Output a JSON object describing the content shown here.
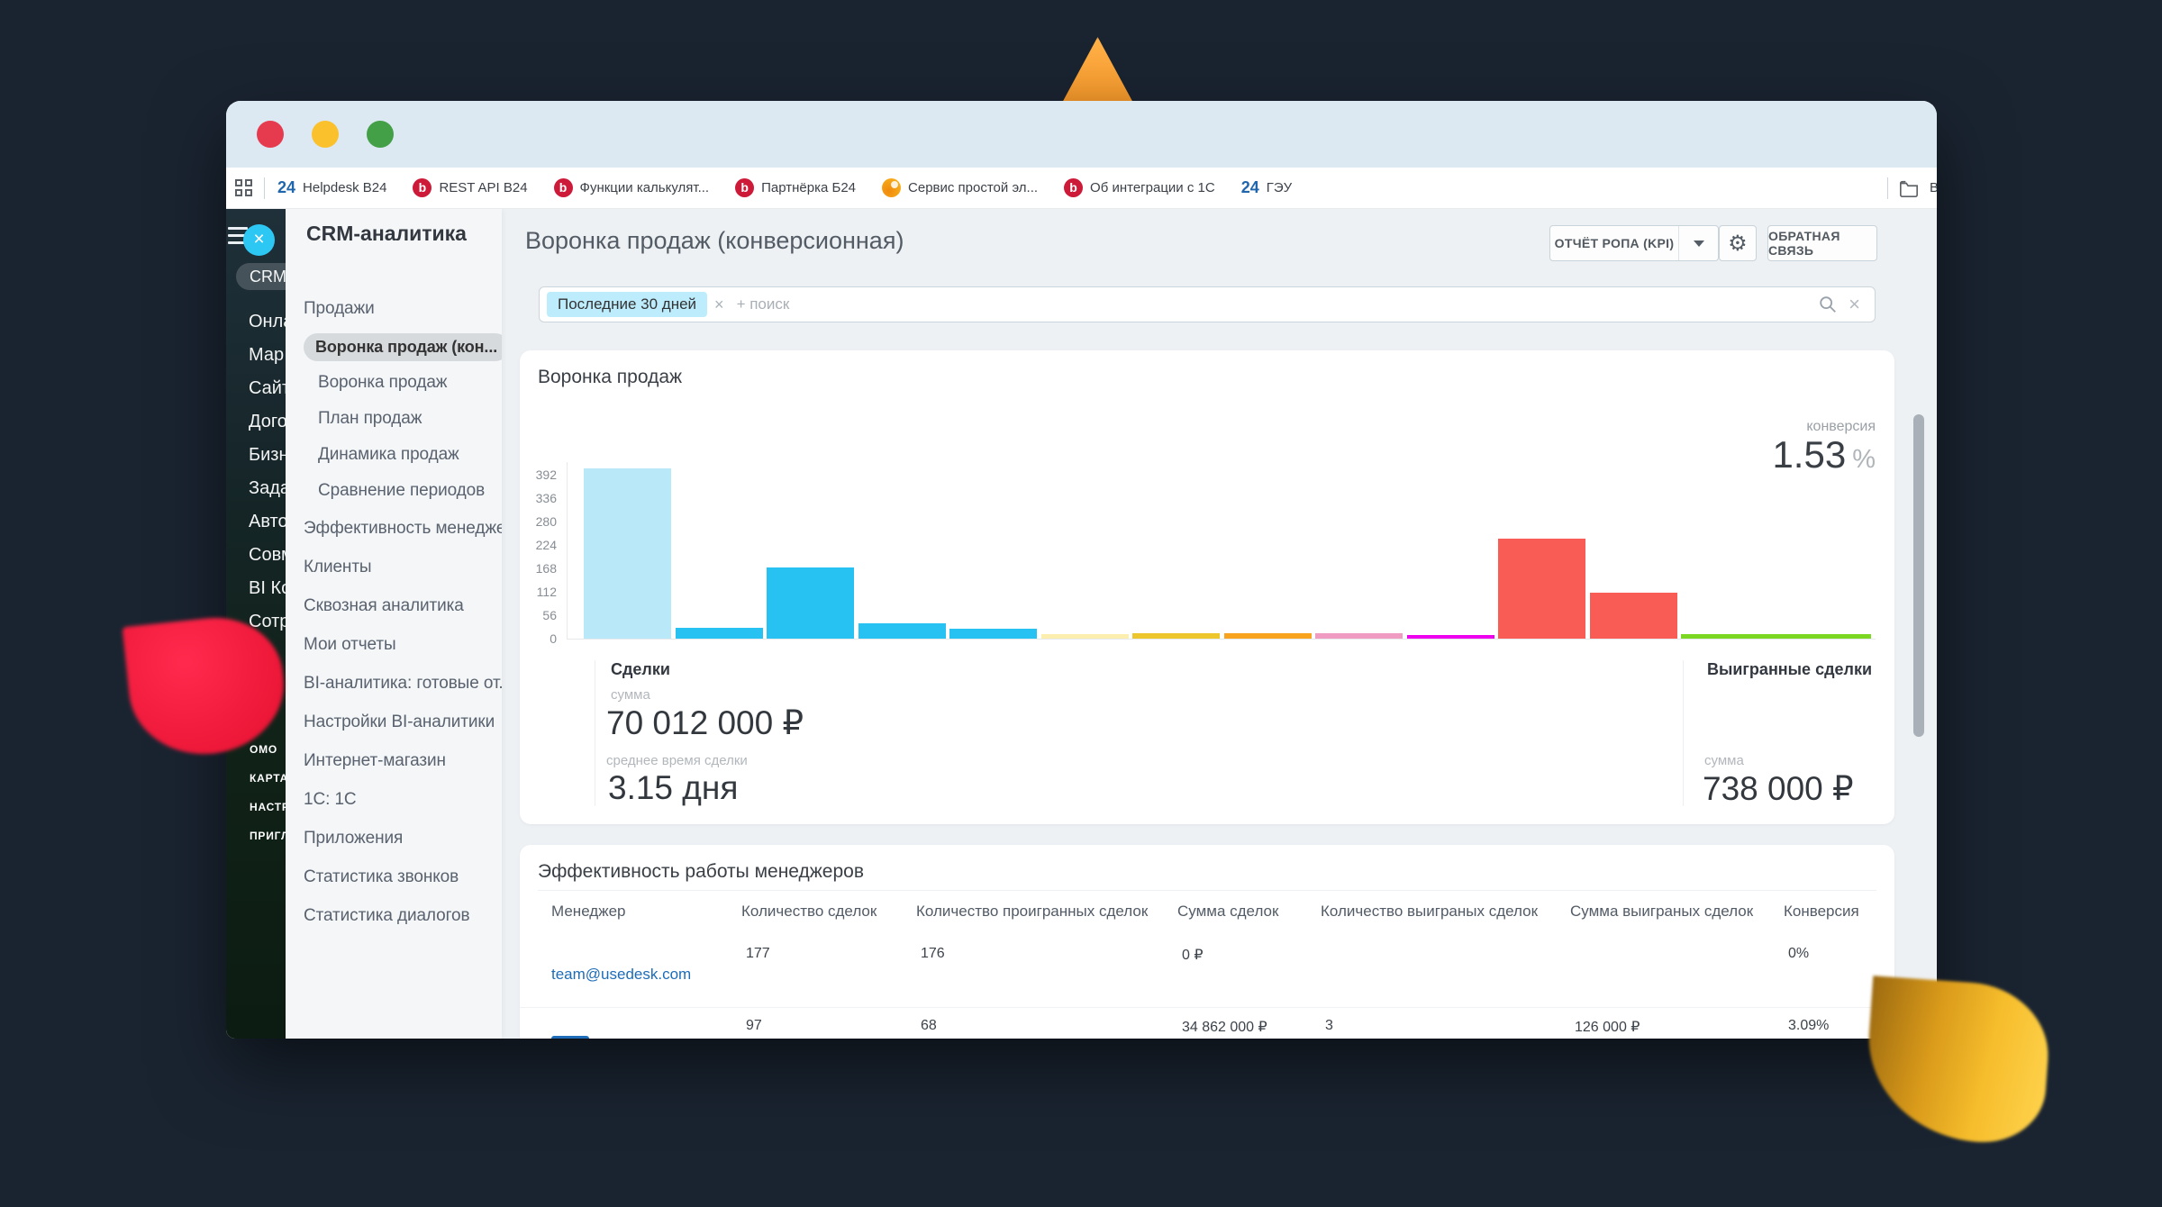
{
  "browser": {
    "bookmarks": {
      "items": [
        {
          "icon": "bitrix24-logo",
          "icon_text": "24",
          "label": "Helpdesk B24"
        },
        {
          "icon": "bitrix-b-logo",
          "icon_text": "b",
          "label": "REST API B24"
        },
        {
          "icon": "bitrix-b-logo",
          "icon_text": "b",
          "label": "Функции калькулят..."
        },
        {
          "icon": "bitrix-b-logo",
          "icon_text": "b",
          "label": "Партнёрка Б24"
        },
        {
          "icon": "orange-service-logo",
          "icon_text": "",
          "label": "Сервис простой эл..."
        },
        {
          "icon": "bitrix-b-logo",
          "icon_text": "b",
          "label": "Об интеграции с 1С"
        },
        {
          "icon": "bitrix24-logo",
          "icon_text": "24",
          "label": "ГЭУ"
        }
      ],
      "overflow_label": "Во"
    }
  },
  "sidebar": {
    "items": [
      {
        "label": "CRM",
        "pill": true
      },
      {
        "label": "Онла"
      },
      {
        "label": "Мар"
      },
      {
        "label": "Сайт"
      },
      {
        "label": "Дого"
      },
      {
        "label": "Бизн"
      },
      {
        "label": "Зада"
      },
      {
        "label": "Авто"
      },
      {
        "label": "Совм"
      },
      {
        "label": "BI Ко"
      },
      {
        "label": "Сотр"
      }
    ],
    "caps_items": [
      "ОМО",
      "КАРТА",
      "НАСТР",
      "ПРИГЛ"
    ]
  },
  "crm_panel": {
    "title": "CRM-аналитика",
    "items": [
      {
        "label": "Продажи"
      },
      {
        "label": "Воронка продаж (кон...",
        "active": true
      },
      {
        "label": "Воронка продаж",
        "indent": true
      },
      {
        "label": "План продаж",
        "indent": true
      },
      {
        "label": "Динамика продаж",
        "indent": true
      },
      {
        "label": "Сравнение периодов",
        "indent": true
      },
      {
        "label": "Эффективность менедже..."
      },
      {
        "label": "Клиенты"
      },
      {
        "label": "Сквозная аналитика"
      },
      {
        "label": "Мои отчеты"
      },
      {
        "label": "BI-аналитика: готовые от..."
      },
      {
        "label": "Настройки BI-аналитики"
      },
      {
        "label": "Интернет-магазин"
      },
      {
        "label": "1С: 1С"
      },
      {
        "label": "Приложения"
      },
      {
        "label": "Статистика звонков"
      },
      {
        "label": "Статистика диалогов"
      }
    ]
  },
  "header": {
    "title": "Воронка продаж (конверсионная)",
    "report_button": "ОТЧЁТ РОПА (KPI)",
    "feedback_button": "ОБРАТНАЯ СВЯЗЬ"
  },
  "filter": {
    "chip": "Последние 30 дней",
    "placeholder": "+ поиск"
  },
  "funnel": {
    "title": "Воронка продаж",
    "conversion_label": "конверсия",
    "conversion_value": "1.53",
    "conversion_unit": "%",
    "deals": {
      "title": "Сделки",
      "sum_label": "сумма",
      "sum_value": "70 012 000 ₽",
      "avg_label": "среднее время сделки",
      "avg_value": "3.15 дня"
    },
    "won": {
      "title": "Выигранные сделки",
      "sum_label": "сумма",
      "sum_value": "738 000 ₽"
    }
  },
  "chart_data": {
    "type": "bar",
    "title": "Воронка продаж",
    "values": [
      408,
      25,
      170,
      37,
      23,
      10,
      13,
      13,
      12,
      8,
      240,
      110,
      10
    ],
    "colors": [
      "#b9e8f9",
      "#27c2f2",
      "#27c2f2",
      "#27c2f2",
      "#27c2f2",
      "#fceeae",
      "#edc62e",
      "#f8a41f",
      "#f09bc2",
      "#ee00ee",
      "#f95c55",
      "#f95c55",
      "#7bd721"
    ],
    "yticks": [
      392,
      336,
      280,
      224,
      168,
      112,
      56,
      0
    ],
    "ylim": [
      0,
      422
    ],
    "x_labels_visible": false,
    "grid": false,
    "last_bar_wide": true,
    "conversion_pct": "1.53"
  },
  "managers": {
    "title": "Эффективность работы менеджеров",
    "columns": [
      "Менеджер",
      "Количество сделок",
      "Количество проигранных сделок",
      "Сумма сделок",
      "Количество выиграных сделок",
      "Сумма выиграных сделок",
      "Конверсия"
    ],
    "rows": [
      [
        "team@usedesk.com",
        "177",
        "176",
        "0 ₽",
        "",
        "",
        "0%"
      ],
      [
        "",
        "97",
        "68",
        "34 862 000 ₽",
        "3",
        "126 000 ₽",
        "3.09%"
      ]
    ]
  },
  "glyphs": {
    "sidebar_close": "×",
    "chip_remove": "×",
    "filter_clear": "×",
    "gear": "⚙"
  },
  "colors": {
    "desktop_bg": "#1a2431",
    "titlebar_bg": "#dce8f2",
    "traffic_red": "#e63b4e",
    "traffic_yellow": "#fbc12d",
    "traffic_green": "#43a047",
    "accent_cyan": "#2dc7f4",
    "chip_bg": "#bdecfd",
    "link_blue": "#1e6cb8",
    "content_bg": "#edf1f4",
    "decor_orange": "#f78d18",
    "decor_red": "#e61030",
    "decor_yellow": "#f6bd2c"
  }
}
